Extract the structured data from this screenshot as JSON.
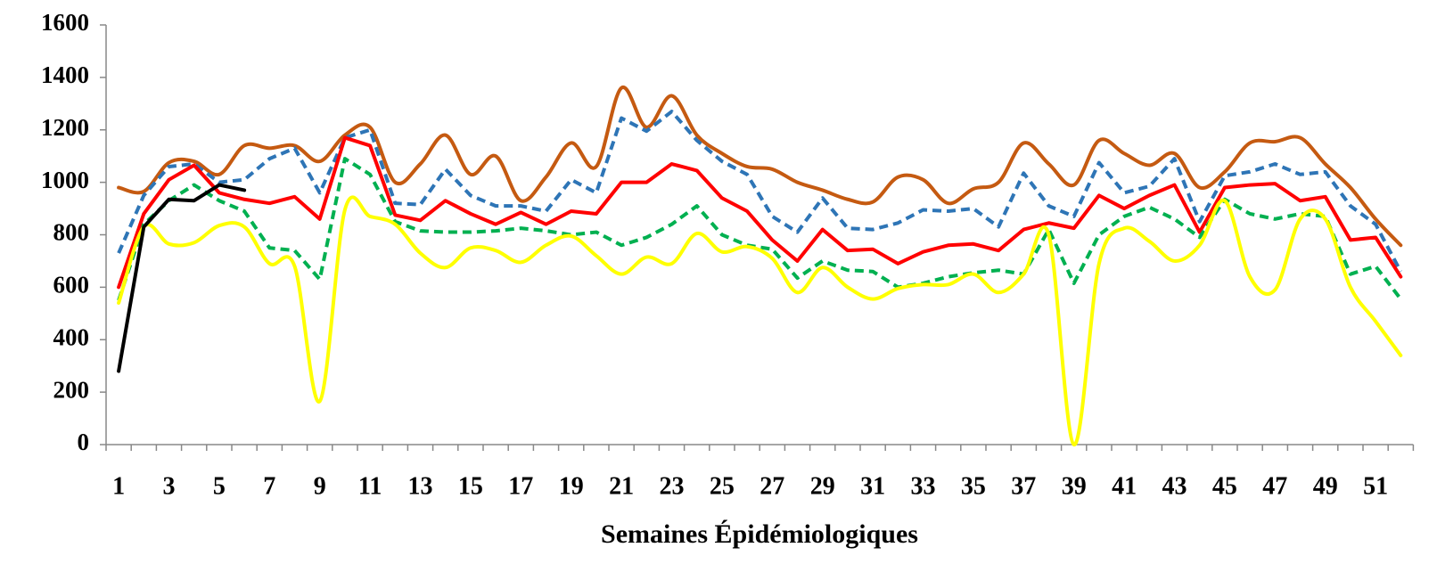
{
  "chart_data": {
    "type": "line",
    "x_label": "Semaines Épidémiologiques",
    "categories": [
      1,
      null,
      3,
      null,
      5,
      null,
      7,
      null,
      9,
      null,
      11,
      null,
      13,
      null,
      15,
      null,
      17,
      null,
      19,
      null,
      21,
      null,
      23,
      null,
      25,
      null,
      27,
      null,
      29,
      null,
      31,
      null,
      33,
      null,
      35,
      null,
      37,
      null,
      39,
      null,
      41,
      null,
      43,
      null,
      45,
      null,
      47,
      null,
      49,
      null,
      51,
      null
    ],
    "ylim": [
      0,
      1600
    ],
    "yticks": [
      0,
      200,
      400,
      600,
      800,
      1000,
      1200,
      1400,
      1600
    ],
    "series": [
      {
        "color": "#c55a11",
        "smooth": true,
        "dashed": false,
        "values": [
          980,
          965,
          1075,
          1080,
          1030,
          1140,
          1130,
          1140,
          1080,
          1180,
          1210,
          1000,
          1070,
          1180,
          1030,
          1100,
          930,
          1020,
          1150,
          1060,
          1360,
          1210,
          1330,
          1180,
          1110,
          1060,
          1050,
          1000,
          970,
          935,
          925,
          1020,
          1010,
          920,
          975,
          1000,
          1150,
          1070,
          990,
          1160,
          1110,
          1065,
          1110,
          980,
          1040,
          1150,
          1155,
          1170,
          1070,
          980,
          860,
          760
        ]
      },
      {
        "color": "#2e75b6",
        "smooth": false,
        "dashed": true,
        "values": [
          730,
          950,
          1060,
          1070,
          1000,
          1010,
          1090,
          1130,
          960,
          1170,
          1200,
          920,
          915,
          1050,
          950,
          910,
          910,
          890,
          1010,
          960,
          1245,
          1195,
          1270,
          1160,
          1080,
          1030,
          870,
          810,
          940,
          825,
          820,
          845,
          895,
          890,
          900,
          830,
          1035,
          910,
          870,
          1075,
          960,
          985,
          1090,
          850,
          1025,
          1040,
          1070,
          1030,
          1040,
          910,
          840,
          660
        ]
      },
      {
        "color": "#ff0000",
        "smooth": false,
        "dashed": false,
        "values": [
          600,
          880,
          1010,
          1065,
          960,
          935,
          920,
          945,
          860,
          1170,
          1140,
          875,
          855,
          930,
          880,
          840,
          885,
          840,
          890,
          880,
          1000,
          1000,
          1070,
          1045,
          940,
          890,
          780,
          700,
          820,
          740,
          745,
          690,
          735,
          760,
          765,
          740,
          820,
          845,
          825,
          950,
          900,
          950,
          990,
          810,
          980,
          990,
          995,
          930,
          945,
          780,
          790,
          640
        ]
      },
      {
        "color": "#00b050",
        "smooth": false,
        "dashed": true,
        "values": [
          550,
          840,
          930,
          990,
          930,
          890,
          750,
          740,
          630,
          1090,
          1030,
          850,
          815,
          810,
          810,
          815,
          825,
          815,
          800,
          810,
          760,
          790,
          840,
          910,
          800,
          760,
          745,
          635,
          700,
          665,
          660,
          600,
          615,
          640,
          655,
          665,
          650,
          820,
          615,
          800,
          870,
          905,
          860,
          790,
          935,
          880,
          860,
          880,
          870,
          650,
          680,
          555
        ]
      },
      {
        "color": "#ffff00",
        "smooth": true,
        "dashed": false,
        "values": [
          540,
          830,
          765,
          770,
          835,
          830,
          690,
          680,
          165,
          895,
          870,
          840,
          730,
          675,
          750,
          740,
          695,
          760,
          795,
          720,
          650,
          715,
          690,
          805,
          735,
          755,
          710,
          580,
          675,
          600,
          555,
          595,
          610,
          610,
          650,
          580,
          650,
          800,
          0,
          690,
          825,
          775,
          700,
          760,
          930,
          640,
          590,
          860,
          860,
          600,
          470,
          340
        ]
      },
      {
        "color": "#000000",
        "smooth": false,
        "dashed": false,
        "values": [
          280,
          830,
          935,
          930,
          990,
          970,
          null,
          null,
          null,
          null,
          null,
          null,
          null,
          null,
          null,
          null,
          null,
          null,
          null,
          null,
          null,
          null,
          null,
          null,
          null,
          null,
          null,
          null,
          null,
          null,
          null,
          null,
          null,
          null,
          null,
          null,
          null,
          null,
          null,
          null,
          null,
          null,
          null,
          null,
          null,
          null,
          null,
          null,
          null,
          null,
          null,
          null
        ]
      }
    ]
  }
}
